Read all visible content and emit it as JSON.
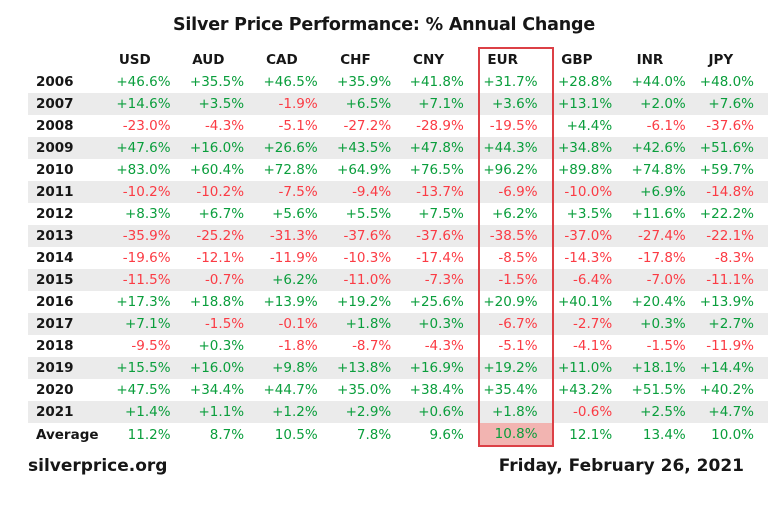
{
  "title": "Silver Price Performance: % Annual Change",
  "table": {
    "columns": [
      "USD",
      "AUD",
      "CAD",
      "CHF",
      "CNY",
      "EUR",
      "GBP",
      "INR",
      "JPY"
    ],
    "highlighted_column": "EUR",
    "rows": [
      {
        "label": "2006",
        "values": [
          "+46.6%",
          "+35.5%",
          "+46.5%",
          "+35.9%",
          "+41.8%",
          "+31.7%",
          "+28.8%",
          "+44.0%",
          "+48.0%"
        ]
      },
      {
        "label": "2007",
        "values": [
          "+14.6%",
          "+3.5%",
          "-1.9%",
          "+6.5%",
          "+7.1%",
          "+3.6%",
          "+13.1%",
          "+2.0%",
          "+7.6%"
        ]
      },
      {
        "label": "2008",
        "values": [
          "-23.0%",
          "-4.3%",
          "-5.1%",
          "-27.2%",
          "-28.9%",
          "-19.5%",
          "+4.4%",
          "-6.1%",
          "-37.6%"
        ]
      },
      {
        "label": "2009",
        "values": [
          "+47.6%",
          "+16.0%",
          "+26.6%",
          "+43.5%",
          "+47.8%",
          "+44.3%",
          "+34.8%",
          "+42.6%",
          "+51.6%"
        ]
      },
      {
        "label": "2010",
        "values": [
          "+83.0%",
          "+60.4%",
          "+72.8%",
          "+64.9%",
          "+76.5%",
          "+96.2%",
          "+89.8%",
          "+74.8%",
          "+59.7%"
        ]
      },
      {
        "label": "2011",
        "values": [
          "-10.2%",
          "-10.2%",
          "-7.5%",
          "-9.4%",
          "-13.7%",
          "-6.9%",
          "-10.0%",
          "+6.9%",
          "-14.8%"
        ]
      },
      {
        "label": "2012",
        "values": [
          "+8.3%",
          "+6.7%",
          "+5.6%",
          "+5.5%",
          "+7.5%",
          "+6.2%",
          "+3.5%",
          "+11.6%",
          "+22.2%"
        ]
      },
      {
        "label": "2013",
        "values": [
          "-35.9%",
          "-25.2%",
          "-31.3%",
          "-37.6%",
          "-37.6%",
          "-38.5%",
          "-37.0%",
          "-27.4%",
          "-22.1%"
        ]
      },
      {
        "label": "2014",
        "values": [
          "-19.6%",
          "-12.1%",
          "-11.9%",
          "-10.3%",
          "-17.4%",
          "-8.5%",
          "-14.3%",
          "-17.8%",
          "-8.3%"
        ]
      },
      {
        "label": "2015",
        "values": [
          "-11.5%",
          "-0.7%",
          "+6.2%",
          "-11.0%",
          "-7.3%",
          "-1.5%",
          "-6.4%",
          "-7.0%",
          "-11.1%"
        ]
      },
      {
        "label": "2016",
        "values": [
          "+17.3%",
          "+18.8%",
          "+13.9%",
          "+19.2%",
          "+25.6%",
          "+20.9%",
          "+40.1%",
          "+20.4%",
          "+13.9%"
        ]
      },
      {
        "label": "2017",
        "values": [
          "+7.1%",
          "-1.5%",
          "-0.1%",
          "+1.8%",
          "+0.3%",
          "-6.7%",
          "-2.7%",
          "+0.3%",
          "+2.7%"
        ]
      },
      {
        "label": "2018",
        "values": [
          "-9.5%",
          "+0.3%",
          "-1.8%",
          "-8.7%",
          "-4.3%",
          "-5.1%",
          "-4.1%",
          "-1.5%",
          "-11.9%"
        ]
      },
      {
        "label": "2019",
        "values": [
          "+15.5%",
          "+16.0%",
          "+9.8%",
          "+13.8%",
          "+16.9%",
          "+19.2%",
          "+11.0%",
          "+18.1%",
          "+14.4%"
        ]
      },
      {
        "label": "2020",
        "values": [
          "+47.5%",
          "+34.4%",
          "+44.7%",
          "+35.0%",
          "+38.4%",
          "+35.4%",
          "+43.2%",
          "+51.5%",
          "+40.2%"
        ]
      },
      {
        "label": "2021",
        "values": [
          "+1.4%",
          "+1.1%",
          "+1.2%",
          "+2.9%",
          "+0.6%",
          "+1.8%",
          "-0.6%",
          "+2.5%",
          "+4.7%"
        ]
      },
      {
        "label": "Average",
        "values": [
          "11.2%",
          "8.7%",
          "10.5%",
          "7.8%",
          "9.6%",
          "10.8%",
          "12.1%",
          "13.4%",
          "10.0%"
        ]
      }
    ]
  },
  "footer": {
    "source": "silverprice.org",
    "date": "Friday, February 26, 2021"
  },
  "colors": {
    "positive": "#0a9e3c",
    "negative": "#fb3b44",
    "highlight_border": "#dc4046",
    "highlight_fill": "#f2b4b1",
    "stripe": "#ebebeb",
    "text": "#161616"
  },
  "chart_data": {
    "type": "table",
    "title": "Silver Price Performance: % Annual Change",
    "unit": "%",
    "categories": [
      "2006",
      "2007",
      "2008",
      "2009",
      "2010",
      "2011",
      "2012",
      "2013",
      "2014",
      "2015",
      "2016",
      "2017",
      "2018",
      "2019",
      "2020",
      "2021",
      "Average"
    ],
    "highlighted_series": "EUR",
    "series": [
      {
        "name": "USD",
        "values": [
          46.6,
          14.6,
          -23.0,
          47.6,
          83.0,
          -10.2,
          8.3,
          -35.9,
          -19.6,
          -11.5,
          17.3,
          7.1,
          -9.5,
          15.5,
          47.5,
          1.4,
          11.2
        ]
      },
      {
        "name": "AUD",
        "values": [
          35.5,
          3.5,
          -4.3,
          16.0,
          60.4,
          -10.2,
          6.7,
          -25.2,
          -12.1,
          -0.7,
          18.8,
          -1.5,
          0.3,
          16.0,
          34.4,
          1.1,
          8.7
        ]
      },
      {
        "name": "CAD",
        "values": [
          46.5,
          -1.9,
          -5.1,
          26.6,
          72.8,
          -7.5,
          5.6,
          -31.3,
          -11.9,
          6.2,
          13.9,
          -0.1,
          -1.8,
          9.8,
          44.7,
          1.2,
          10.5
        ]
      },
      {
        "name": "CHF",
        "values": [
          35.9,
          6.5,
          -27.2,
          43.5,
          64.9,
          -9.4,
          5.5,
          -37.6,
          -10.3,
          -11.0,
          19.2,
          1.8,
          -8.7,
          13.8,
          35.0,
          2.9,
          7.8
        ]
      },
      {
        "name": "CNY",
        "values": [
          41.8,
          7.1,
          -28.9,
          47.8,
          76.5,
          -13.7,
          7.5,
          -37.6,
          -17.4,
          -7.3,
          25.6,
          0.3,
          -4.3,
          16.9,
          38.4,
          0.6,
          9.6
        ]
      },
      {
        "name": "EUR",
        "values": [
          31.7,
          3.6,
          -19.5,
          44.3,
          96.2,
          -6.9,
          6.2,
          -38.5,
          -8.5,
          -1.5,
          20.9,
          -6.7,
          -5.1,
          19.2,
          35.4,
          1.8,
          10.8
        ]
      },
      {
        "name": "GBP",
        "values": [
          28.8,
          13.1,
          4.4,
          34.8,
          89.8,
          -10.0,
          3.5,
          -37.0,
          -14.3,
          -6.4,
          40.1,
          -2.7,
          -4.1,
          11.0,
          43.2,
          -0.6,
          12.1
        ]
      },
      {
        "name": "INR",
        "values": [
          44.0,
          2.0,
          -6.1,
          42.6,
          74.8,
          6.9,
          11.6,
          -27.4,
          -17.8,
          -7.0,
          20.4,
          0.3,
          -1.5,
          18.1,
          51.5,
          2.5,
          13.4
        ]
      },
      {
        "name": "JPY",
        "values": [
          48.0,
          7.6,
          -37.6,
          51.6,
          59.7,
          -14.8,
          22.2,
          -22.1,
          -8.3,
          -11.1,
          13.9,
          2.7,
          -11.9,
          14.4,
          40.2,
          4.7,
          10.0
        ]
      }
    ]
  }
}
